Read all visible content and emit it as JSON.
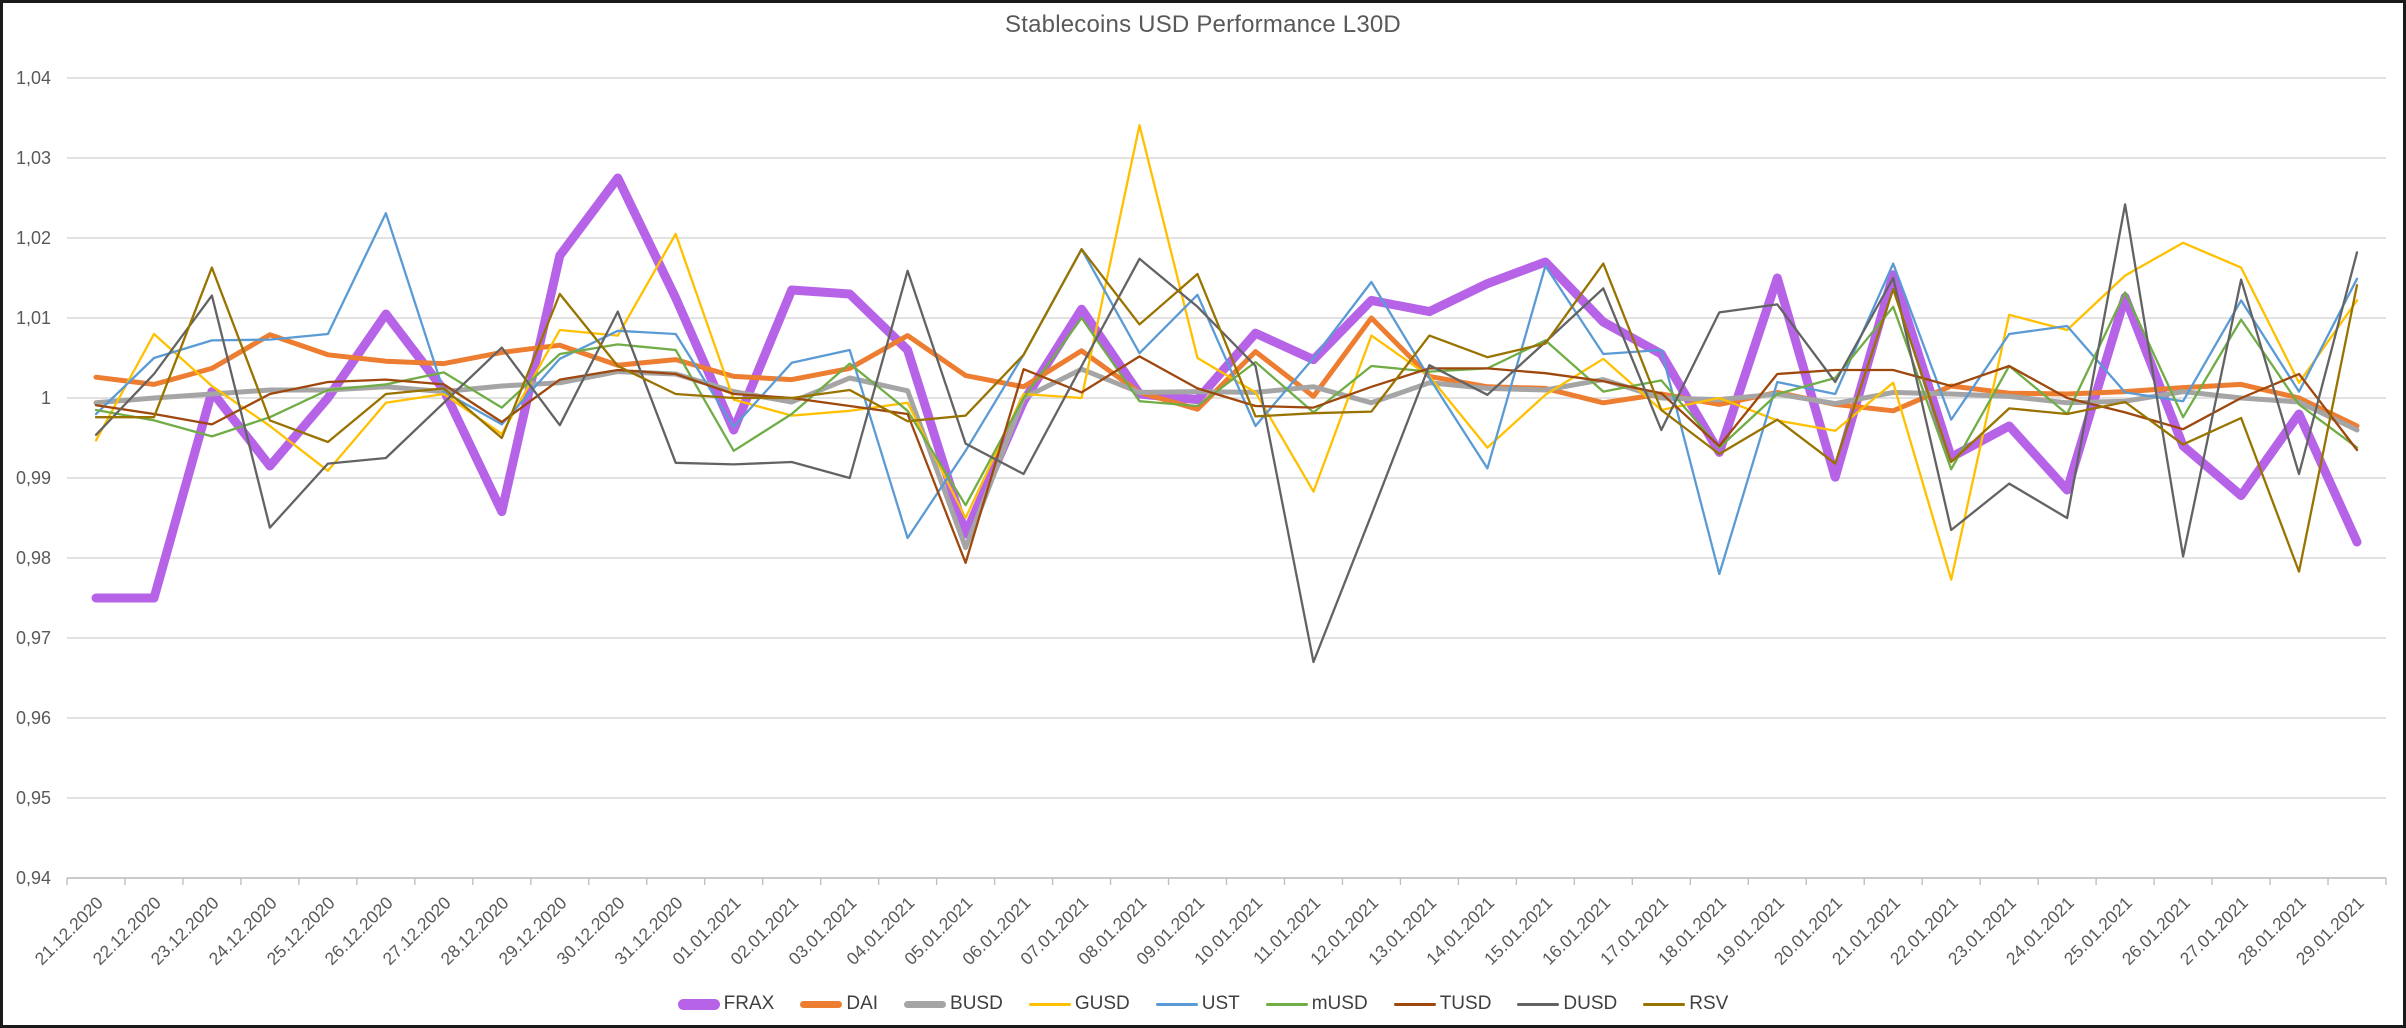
{
  "window": {
    "background": "#FFFFFF",
    "border_color": "#1A1A1A"
  },
  "chart_data": {
    "type": "line",
    "title": "Stablecoins USD Performance L30D",
    "title_color": "#595959",
    "axis_label_color": "#595959",
    "legend_text_color": "#404040",
    "gridline_color": "#D9D9D9",
    "axis_line_color": "#BFBFBF",
    "grid": "horizontal",
    "legend_position": "bottom",
    "decimal_separator": ",",
    "ylim": [
      0.94,
      1.04
    ],
    "y_ticks": [
      "1,04",
      "1,03",
      "1,02",
      "1,01",
      "1",
      "0,99",
      "0,98",
      "0,97",
      "0,96",
      "0,95",
      "0,94"
    ],
    "categories": [
      "21.12.2020",
      "22.12.2020",
      "23.12.2020",
      "24.12.2020",
      "25.12.2020",
      "26.12.2020",
      "27.12.2020",
      "28.12.2020",
      "29.12.2020",
      "30.12.2020",
      "31.12.2020",
      "01.01.2021",
      "02.01.2021",
      "03.01.2021",
      "04.01.2021",
      "05.01.2021",
      "06.01.2021",
      "07.01.2021",
      "08.01.2021",
      "09.01.2021",
      "10.01.2021",
      "11.01.2021",
      "12.01.2021",
      "13.01.2021",
      "14.01.2021",
      "15.01.2021",
      "16.01.2021",
      "17.01.2021",
      "18.01.2021",
      "19.01.2021",
      "20.01.2021",
      "21.01.2021",
      "22.01.2021",
      "23.01.2021",
      "24.01.2021",
      "25.01.2021",
      "26.01.2021",
      "27.01.2021",
      "28.01.2021",
      "29.01.2021"
    ],
    "series": [
      {
        "name": "FRAX",
        "color": "#B763E8",
        "width": 9,
        "values": [
          0.975,
          0.975,
          1.0008,
          0.9915,
          1.0,
          1.0105,
          1.001,
          0.9858,
          1.0178,
          1.0275,
          1.0125,
          0.996,
          1.0135,
          1.013,
          1.006,
          0.983,
          0.9996,
          1.0111,
          1.0005,
          0.9998,
          1.0081,
          1.0048,
          1.0122,
          1.0108,
          1.0143,
          1.017,
          1.0095,
          1.0055,
          0.9932,
          1.015,
          0.9901,
          1.0154,
          0.9926,
          0.9965,
          0.9885,
          1.0126,
          0.994,
          0.9878,
          0.998,
          0.982
        ]
      },
      {
        "name": "DAI",
        "color": "#ED7D31",
        "width": 5,
        "values": [
          1.0026,
          1.0017,
          1.0037,
          1.0079,
          1.0054,
          1.0046,
          1.0043,
          1.0057,
          1.0066,
          1.0041,
          1.0048,
          1.0027,
          1.0023,
          1.0037,
          1.0078,
          1.0028,
          1.0014,
          1.0059,
          1.0007,
          0.9986,
          1.0058,
          1.0002,
          1.01,
          1.0027,
          1.0014,
          1.0012,
          0.9994,
          1.0005,
          0.9992,
          1.0007,
          0.9992,
          0.9984,
          1.0015,
          1.0006,
          1.0005,
          1.0008,
          1.0013,
          1.0017,
          1.0,
          0.9965
        ]
      },
      {
        "name": "BUSD",
        "color": "#A5A5A5",
        "width": 5,
        "values": [
          0.9994,
          1.0,
          1.0005,
          1.001,
          1.001,
          1.0014,
          1.0008,
          1.0015,
          1.0019,
          1.0033,
          1.003,
          1.0008,
          0.9995,
          1.0025,
          1.0009,
          0.9813,
          1.0,
          1.0036,
          1.0007,
          1.0008,
          1.0007,
          1.0014,
          0.9994,
          1.0019,
          1.0012,
          1.001,
          1.0023,
          1.0,
          0.9998,
          1.0005,
          0.9993,
          1.0007,
          1.0005,
          1.0002,
          0.9994,
          0.9996,
          1.0008,
          1.0,
          0.9995,
          0.996
        ]
      },
      {
        "name": "GUSD",
        "color": "#FFC000",
        "width": 2.3,
        "values": [
          0.9947,
          1.008,
          1.0015,
          0.9965,
          0.9909,
          0.9994,
          1.0005,
          0.9955,
          1.0085,
          1.0078,
          1.0205,
          0.9998,
          0.9978,
          0.9984,
          0.9994,
          0.985,
          1.0005,
          1.0,
          1.0341,
          1.005,
          1.0007,
          0.9883,
          1.0078,
          1.0027,
          0.9938,
          1.0004,
          1.0049,
          0.9985,
          1.0,
          0.9972,
          0.9959,
          1.0019,
          0.9773,
          1.0104,
          1.0085,
          1.0153,
          1.0194,
          1.0163,
          1.0019,
          1.0122
        ]
      },
      {
        "name": "UST",
        "color": "#5B9BD5",
        "width": 2.3,
        "values": [
          0.998,
          1.005,
          1.0072,
          1.0073,
          1.008,
          1.0231,
          1.0008,
          0.9967,
          1.0049,
          1.0084,
          1.008,
          0.9964,
          1.0044,
          1.006,
          0.9825,
          0.9934,
          1.0054,
          1.0186,
          1.0056,
          1.0129,
          0.9965,
          1.005,
          1.0145,
          1.0025,
          0.9912,
          1.0165,
          1.0055,
          1.006,
          0.978,
          1.002,
          1.0005,
          1.0168,
          0.9973,
          1.008,
          1.009,
          1.0007,
          0.9996,
          1.0122,
          1.0008,
          1.0149
        ]
      },
      {
        "name": "mUSD",
        "color": "#70AD47",
        "width": 2.3,
        "values": [
          0.9985,
          0.9972,
          0.9952,
          0.9976,
          1.001,
          1.0017,
          1.0032,
          0.9988,
          1.0055,
          1.0067,
          1.006,
          0.9934,
          0.998,
          1.0043,
          0.9984,
          0.9866,
          1.0,
          1.01,
          0.9996,
          0.999,
          1.0045,
          0.9982,
          1.004,
          1.0033,
          1.0037,
          1.0072,
          1.0008,
          1.0022,
          0.9938,
          1.0005,
          1.0025,
          1.0114,
          0.9911,
          1.004,
          0.998,
          1.0132,
          0.9976,
          1.0098,
          0.9992,
          0.9938
        ]
      },
      {
        "name": "TUSD",
        "color": "#9E480E",
        "width": 2.3,
        "values": [
          0.9991,
          0.998,
          0.9967,
          1.0005,
          1.002,
          1.0023,
          1.0017,
          0.997,
          1.0023,
          1.0035,
          1.003,
          1.0005,
          1.0,
          0.999,
          0.998,
          0.9794,
          1.0036,
          1.0007,
          1.0052,
          1.0012,
          0.999,
          0.9988,
          1.0014,
          1.0037,
          1.0037,
          1.0031,
          1.0021,
          1.0006,
          0.994,
          1.003,
          1.0035,
          1.0035,
          1.0015,
          1.004,
          1.0,
          0.9982,
          0.9961,
          1.0,
          1.003,
          0.9935
        ]
      },
      {
        "name": "DUSD",
        "color": "#636363",
        "width": 2.3,
        "values": [
          0.9954,
          1.003,
          1.0128,
          0.9838,
          0.9918,
          0.9925,
          0.9994,
          1.0063,
          0.9966,
          1.0108,
          0.9919,
          0.9917,
          0.992,
          0.99,
          1.0159,
          0.9943,
          0.9905,
          1.004,
          1.0174,
          1.0114,
          1.004,
          0.967,
          0.9854,
          1.0041,
          1.0004,
          1.007,
          1.0137,
          0.996,
          1.0107,
          1.0117,
          1.002,
          1.015,
          0.9835,
          0.9893,
          0.985,
          1.0242,
          0.9802,
          1.0148,
          0.9905,
          1.0182
        ]
      },
      {
        "name": "RSV",
        "color": "#997300",
        "width": 2.3,
        "values": [
          0.9976,
          0.9976,
          1.0163,
          0.9972,
          0.9945,
          1.0005,
          1.0012,
          0.995,
          1.013,
          1.004,
          1.0005,
          1.0,
          1.0,
          1.001,
          0.9971,
          0.9978,
          1.0054,
          1.0186,
          1.0092,
          1.0155,
          0.9977,
          0.9981,
          0.9983,
          1.0078,
          1.0051,
          1.0068,
          1.0168,
          0.9985,
          0.993,
          0.9973,
          0.9918,
          1.0136,
          0.992,
          0.9987,
          0.998,
          0.9995,
          0.9942,
          0.9975,
          0.9783,
          1.0141
        ]
      }
    ]
  }
}
